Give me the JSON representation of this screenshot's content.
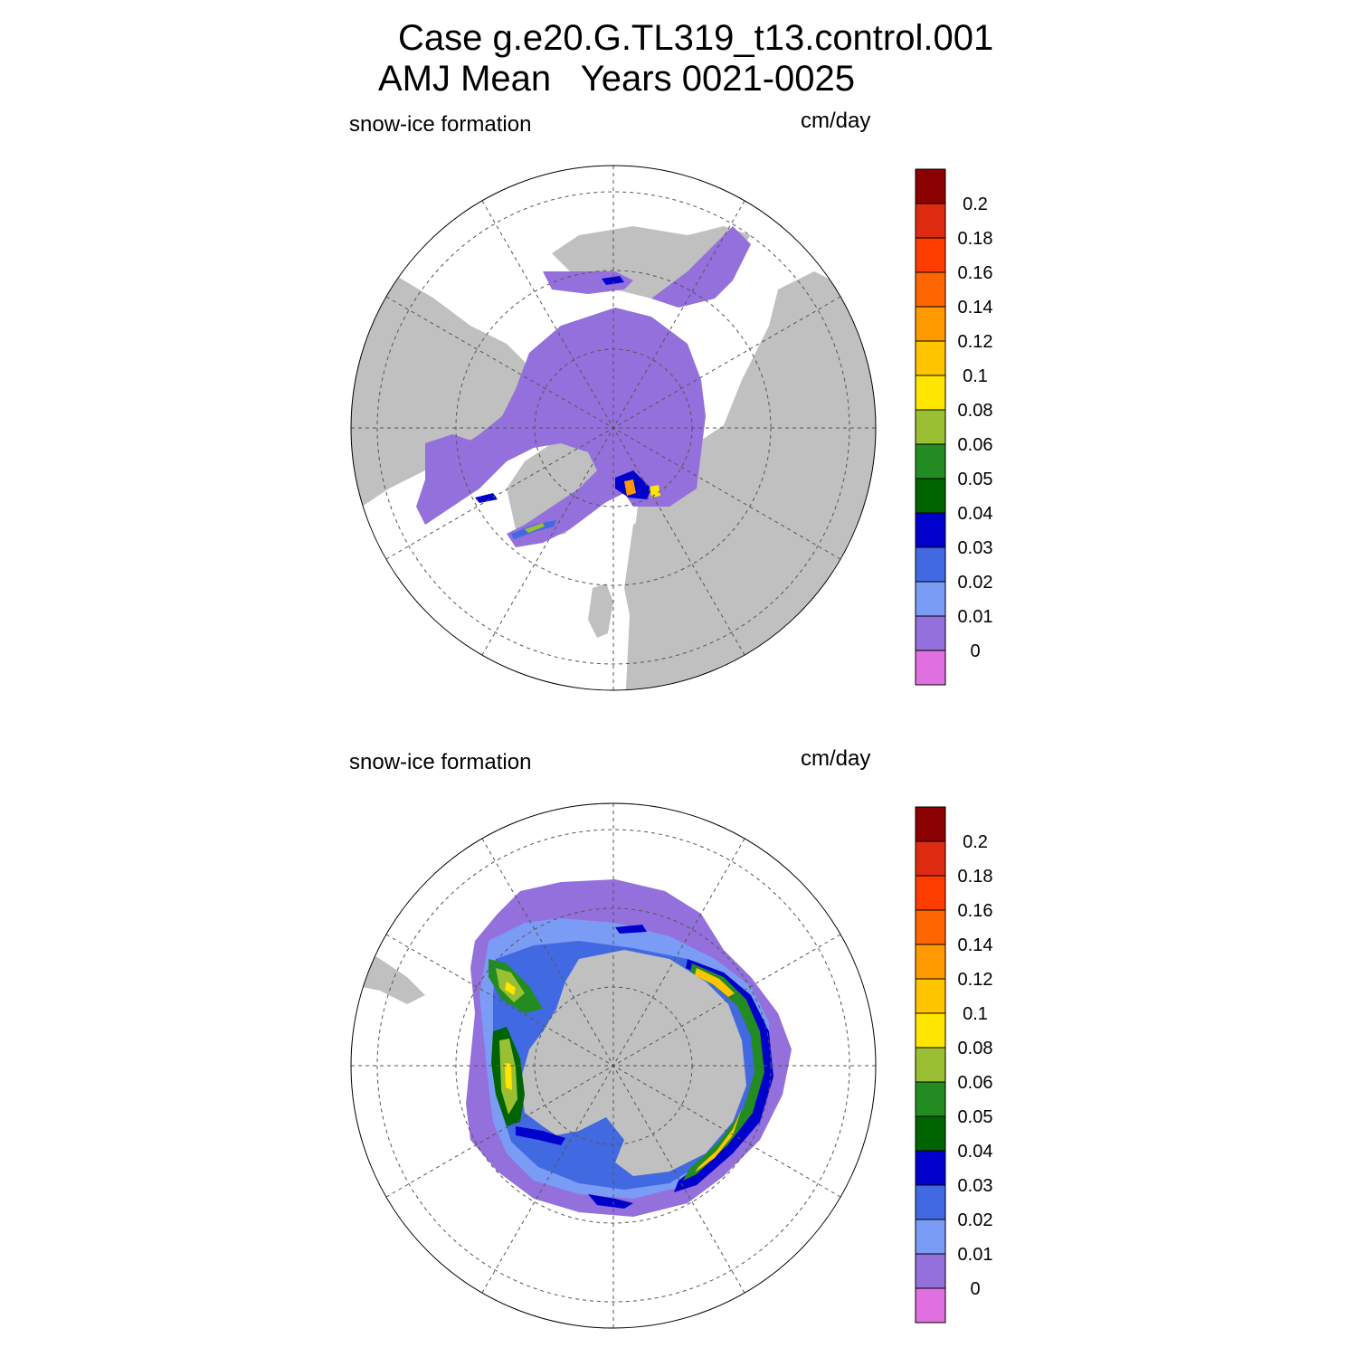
{
  "figure": {
    "title_line1": "Case g.e20.G.TL319_t13.control.001",
    "title_line2": "AMJ Mean   Years 0021-0025"
  },
  "panels": [
    {
      "id": "north",
      "hemisphere": "Arctic (north polar stereographic)",
      "left_label": "snow-ice formation",
      "right_label": "cm/day"
    },
    {
      "id": "south",
      "hemisphere": "Antarctic (south polar stereographic)",
      "left_label": "snow-ice formation",
      "right_label": "cm/day"
    }
  ],
  "colorbar": {
    "labels": [
      "0.2",
      "0.18",
      "0.16",
      "0.14",
      "0.12",
      "0.1",
      "0.08",
      "0.06",
      "0.05",
      "0.04",
      "0.03",
      "0.02",
      "0.01",
      "0"
    ],
    "colors_top_to_bottom": [
      "#8b0000",
      "#dd2b12",
      "#ff3c00",
      "#ff6600",
      "#ff9900",
      "#ffc400",
      "#ffe600",
      "#9abf33",
      "#228b22",
      "#006400",
      "#0000cd",
      "#4169e1",
      "#7b9cf5",
      "#9370db",
      "#e070e0"
    ]
  },
  "map_colors": {
    "land": "#c0c0c0",
    "ice_base": "#9370db",
    "ocean": "#ffffff"
  }
}
